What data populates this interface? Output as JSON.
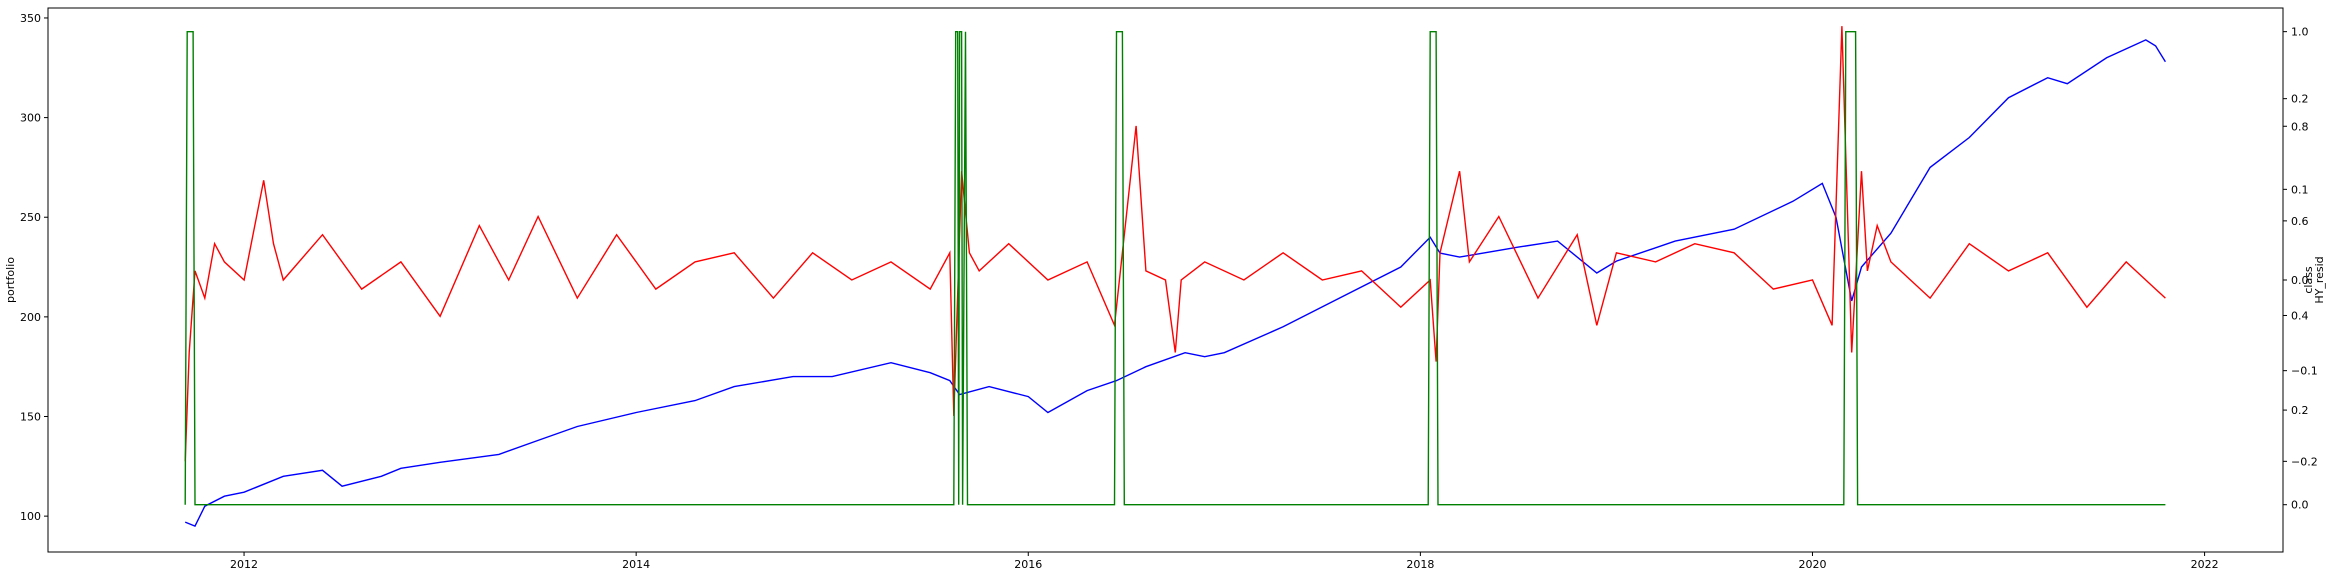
{
  "chart_data": {
    "type": "line",
    "xlabel": "",
    "ylabel_left": "portfolio",
    "ylabel_right": [
      "class",
      "HY_resid"
    ],
    "xlim": [
      2011.0,
      2022.4
    ],
    "x_ticks": [
      2012,
      2014,
      2016,
      2018,
      2020,
      2022
    ],
    "y_left": {
      "lim": [
        82,
        355
      ],
      "ticks": [
        100,
        150,
        200,
        250,
        300,
        350
      ]
    },
    "y_class": {
      "lim": [
        -0.1,
        1.05
      ],
      "ticks": [
        "0.0",
        "0.2",
        "0.4",
        "0.6",
        "0.8",
        "1.0"
      ]
    },
    "y_resid": {
      "lim": [
        -0.3,
        0.3
      ],
      "ticks": [
        "−0.2",
        "−0.1",
        "0.0",
        "0.1",
        "0.2"
      ]
    },
    "grid": false,
    "series": [
      {
        "axis": "left",
        "color": "#0000ff",
        "x": [
          2011.7,
          2011.75,
          2011.8,
          2011.9,
          2012.0,
          2012.2,
          2012.4,
          2012.5,
          2012.7,
          2012.8,
          2013.0,
          2013.3,
          2013.5,
          2013.7,
          2014.0,
          2014.3,
          2014.5,
          2014.8,
          2015.0,
          2015.3,
          2015.5,
          2015.6,
          2015.65,
          2015.8,
          2016.0,
          2016.1,
          2016.3,
          2016.45,
          2016.6,
          2016.8,
          2016.9,
          2017.0,
          2017.3,
          2017.6,
          2017.9,
          2018.05,
          2018.1,
          2018.2,
          2018.5,
          2018.7,
          2018.9,
          2019.0,
          2019.3,
          2019.6,
          2019.9,
          2020.05,
          2020.12,
          2020.2,
          2020.25,
          2020.4,
          2020.6,
          2020.8,
          2021.0,
          2021.2,
          2021.3,
          2021.5,
          2021.7,
          2021.75,
          2021.8
        ],
        "values": [
          97,
          95,
          105,
          110,
          112,
          120,
          123,
          115,
          120,
          124,
          127,
          131,
          138,
          145,
          152,
          158,
          165,
          170,
          170,
          177,
          172,
          168,
          161,
          165,
          160,
          152,
          163,
          168,
          175,
          182,
          180,
          182,
          195,
          210,
          225,
          240,
          232,
          230,
          235,
          238,
          222,
          228,
          238,
          244,
          258,
          267,
          250,
          208,
          225,
          242,
          275,
          290,
          310,
          320,
          317,
          330,
          339,
          336,
          328
        ]
      },
      {
        "axis": "resid",
        "color": "#ff0000",
        "x": [
          2011.7,
          2011.72,
          2011.75,
          2011.8,
          2011.85,
          2011.9,
          2012.0,
          2012.1,
          2012.15,
          2012.2,
          2012.4,
          2012.6,
          2012.8,
          2013.0,
          2013.2,
          2013.35,
          2013.5,
          2013.7,
          2013.9,
          2014.1,
          2014.3,
          2014.5,
          2014.7,
          2014.9,
          2015.1,
          2015.3,
          2015.5,
          2015.6,
          2015.62,
          2015.66,
          2015.7,
          2015.75,
          2015.9,
          2016.1,
          2016.3,
          2016.44,
          2016.47,
          2016.55,
          2016.6,
          2016.7,
          2016.75,
          2016.78,
          2016.9,
          2017.1,
          2017.3,
          2017.5,
          2017.7,
          2017.9,
          2018.05,
          2018.08,
          2018.1,
          2018.2,
          2018.25,
          2018.4,
          2018.6,
          2018.8,
          2018.9,
          2019.0,
          2019.2,
          2019.4,
          2019.6,
          2019.8,
          2020.0,
          2020.1,
          2020.15,
          2020.2,
          2020.25,
          2020.28,
          2020.33,
          2020.4,
          2020.6,
          2020.8,
          2021.0,
          2021.2,
          2021.4,
          2021.6,
          2021.75,
          2021.8
        ],
        "values": [
          -0.2,
          -0.08,
          0.01,
          -0.02,
          0.04,
          0.02,
          0.0,
          0.11,
          0.04,
          0.0,
          0.05,
          -0.01,
          0.02,
          -0.04,
          0.06,
          0.0,
          0.07,
          -0.02,
          0.05,
          -0.01,
          0.02,
          0.03,
          -0.02,
          0.03,
          0.0,
          0.02,
          -0.01,
          0.03,
          -0.15,
          0.12,
          0.03,
          0.01,
          0.04,
          0.0,
          0.02,
          -0.05,
          0.01,
          0.17,
          0.01,
          0.0,
          -0.08,
          0.0,
          0.02,
          0.0,
          0.03,
          0.0,
          0.01,
          -0.03,
          0.0,
          -0.09,
          0.03,
          0.12,
          0.02,
          0.07,
          -0.02,
          0.05,
          -0.05,
          0.03,
          0.02,
          0.04,
          0.03,
          -0.01,
          0.0,
          -0.05,
          0.28,
          -0.08,
          0.12,
          0.01,
          0.06,
          0.02,
          -0.02,
          0.04,
          0.01,
          0.03,
          -0.03,
          0.02,
          -0.01,
          -0.02
        ]
      },
      {
        "axis": "class",
        "color": "#008000",
        "x": [
          2011.7,
          2011.71,
          2011.74,
          2011.75,
          2015.62,
          2015.63,
          2015.64,
          2015.645,
          2015.65,
          2015.66,
          2015.665,
          2015.68,
          2015.69,
          2016.44,
          2016.45,
          2016.48,
          2016.49,
          2018.04,
          2018.05,
          2018.08,
          2018.09,
          2020.16,
          2020.17,
          2020.22,
          2020.23,
          2021.8
        ],
        "values": [
          0,
          1,
          1,
          0,
          0,
          1,
          1,
          0,
          1,
          1,
          0,
          1,
          0,
          0,
          1,
          1,
          0,
          0,
          1,
          1,
          0,
          0,
          1,
          1,
          0,
          0
        ]
      }
    ]
  }
}
